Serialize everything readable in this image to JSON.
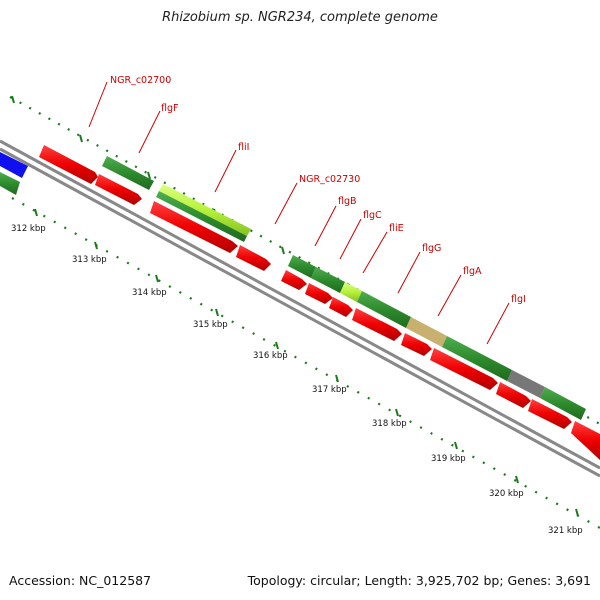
{
  "title": "Rhizobium sp. NGR234, complete genome",
  "footer": {
    "accession": "Accession: NC_012587",
    "summary": "Topology: circular; Length: 3,925,702 bp; Genes: 3,691"
  },
  "colors": {
    "gene_arrow": "#ee0000",
    "cds_dark": "#2e8b2e",
    "cds_light": "#b6f23c",
    "cds_tan": "#c8b06e",
    "cds_gray": "#777777",
    "cds_blue": "#1010ee",
    "backbone": "#888888",
    "ticks": "#1a7a1a",
    "labels": "#cc0000"
  },
  "kbp_labels": [
    "312 kbp",
    "313 kbp",
    "314 kbp",
    "315 kbp",
    "316 kbp",
    "317 kbp",
    "318 kbp",
    "319 kbp",
    "320 kbp",
    "321 kbp"
  ],
  "gene_labels": [
    "NGR_c02700",
    "flgF",
    "fliI",
    "NGR_c02730",
    "flgB",
    "flgC",
    "fliE",
    "flgG",
    "flgA",
    "flgI"
  ]
}
